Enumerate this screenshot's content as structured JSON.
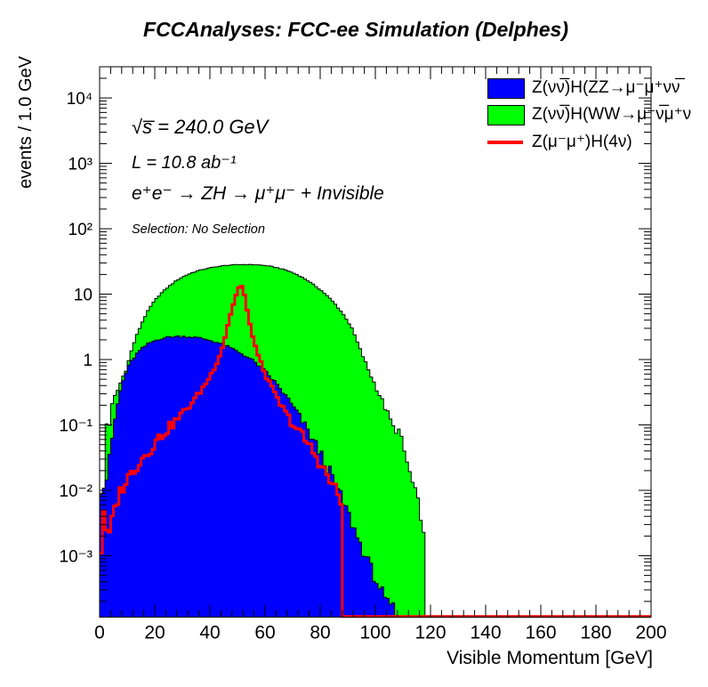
{
  "title": "FCCAnalyses: FCC-ee Simulation (Delphes)",
  "y_axis_title": "events / 1.0 GeV",
  "x_axis_title": "Visible Momentum [GeV]",
  "annotations": {
    "sqrt_s": "√s̅ = 240.0 GeV",
    "luminosity": "L = 10.8 ab⁻¹",
    "process": "e⁺e⁻ → ZH → μ⁺μ⁻ + Invisible",
    "selection": "Selection: No Selection"
  },
  "legend": {
    "entries": [
      {
        "label": "Z(νν̅)H(ZZ→μ⁻μ⁺νν̅",
        "marker": "box",
        "color": "#0000ff"
      },
      {
        "label": "Z(νν̅)H(WW→μ⁻ν̅μ⁺ν",
        "marker": "box",
        "color": "#00ff00"
      },
      {
        "label": "Z(μ⁻μ⁺)H(4ν)",
        "marker": "line",
        "color": "#ff0000"
      }
    ]
  },
  "chart_data": {
    "type": "bar",
    "subtype": "histogram-steps-log-y",
    "bin_width_gev": 1.0,
    "x_range": [
      0,
      200
    ],
    "y_range": [
      0.000115,
      30000
    ],
    "y_scale": "log",
    "grid": false,
    "legend_position": "top-right",
    "x_major_ticks": [
      0,
      20,
      40,
      60,
      80,
      100,
      120,
      140,
      160,
      180,
      200
    ],
    "x_minor_step_gev": 4,
    "y_major_ticks": [
      {
        "value": 10000,
        "label": "10⁴"
      },
      {
        "value": 1000,
        "label": "10³"
      },
      {
        "value": 100,
        "label": "10²"
      },
      {
        "value": 10,
        "label": "10"
      },
      {
        "value": 1,
        "label": "1"
      },
      {
        "value": 0.1,
        "label": "10⁻¹"
      },
      {
        "value": 0.01,
        "label": "10⁻²"
      },
      {
        "value": 0.001,
        "label": "10⁻³"
      }
    ],
    "series": [
      {
        "name": "Z(νν̅)H(WW→μ⁻ν̅μ⁺ν)",
        "style": "filled",
        "fill_color": "#00ff00",
        "line_color": "#000000",
        "line_width": 1,
        "envelope_points": [
          [
            0,
            0.12
          ],
          [
            1,
            0.0001
          ],
          [
            2,
            0.16
          ],
          [
            3,
            0.07
          ],
          [
            4,
            0.16
          ],
          [
            5,
            0.24
          ],
          [
            6,
            0.3
          ],
          [
            7,
            0.38
          ],
          [
            8,
            0.5
          ],
          [
            9,
            0.62
          ],
          [
            10,
            0.8
          ],
          [
            12,
            1.6
          ],
          [
            14,
            2.7
          ],
          [
            16,
            4.2
          ],
          [
            18,
            6.0
          ],
          [
            20,
            8.0
          ],
          [
            22,
            10
          ],
          [
            24,
            12
          ],
          [
            26,
            14
          ],
          [
            28,
            16.3
          ],
          [
            30,
            18.2
          ],
          [
            32,
            20
          ],
          [
            34,
            21.6
          ],
          [
            36,
            23
          ],
          [
            38,
            24.2
          ],
          [
            40,
            25.2
          ],
          [
            42,
            26.1
          ],
          [
            44,
            26.9
          ],
          [
            46,
            27.5
          ],
          [
            48,
            27.9
          ],
          [
            50,
            28.2
          ],
          [
            52,
            28.3
          ],
          [
            54,
            28.3
          ],
          [
            56,
            28.2
          ],
          [
            58,
            27.9
          ],
          [
            60,
            27.4
          ],
          [
            62,
            26.6
          ],
          [
            64,
            25.6
          ],
          [
            66,
            24.4
          ],
          [
            68,
            23.0
          ],
          [
            70,
            21.3
          ],
          [
            72,
            19.5
          ],
          [
            74,
            17.6
          ],
          [
            76,
            15.6
          ],
          [
            78,
            13.6
          ],
          [
            80,
            11.7
          ],
          [
            82,
            9.9
          ],
          [
            84,
            8.2
          ],
          [
            86,
            6.6
          ],
          [
            88,
            5.2
          ],
          [
            90,
            3.9
          ],
          [
            92,
            2.7
          ],
          [
            94,
            1.6
          ],
          [
            96,
            1.0
          ],
          [
            98,
            0.62
          ],
          [
            100,
            0.4
          ],
          [
            102,
            0.26
          ],
          [
            104,
            0.165
          ],
          [
            106,
            0.105
          ],
          [
            107,
            0.075
          ],
          [
            108,
            0.1
          ],
          [
            109,
            0.066
          ],
          [
            110,
            0.046
          ],
          [
            111,
            0.032
          ],
          [
            112,
            0.022
          ],
          [
            113,
            0.015
          ],
          [
            114,
            0.0105
          ],
          [
            115,
            0.0075
          ],
          [
            116,
            0.0053
          ],
          [
            117,
            0.0035
          ],
          [
            118,
            0.0011
          ],
          [
            119,
            0
          ]
        ]
      },
      {
        "name": "Z(νν̅)H(ZZ→μ⁻μ⁺νν̅)",
        "style": "filled",
        "fill_color": "#0000ff",
        "line_color": "#000000",
        "line_width": 1,
        "envelope_points": [
          [
            0,
            0.01
          ],
          [
            1,
            0.011
          ],
          [
            2,
            0.012
          ],
          [
            3,
            0.02
          ],
          [
            4,
            0.042
          ],
          [
            5,
            0.09
          ],
          [
            6,
            0.16
          ],
          [
            7,
            0.27
          ],
          [
            8,
            0.4
          ],
          [
            9,
            0.55
          ],
          [
            10,
            0.72
          ],
          [
            12,
            1.02
          ],
          [
            14,
            1.3
          ],
          [
            16,
            1.55
          ],
          [
            18,
            1.78
          ],
          [
            20,
            1.95
          ],
          [
            22,
            2.08
          ],
          [
            24,
            2.17
          ],
          [
            26,
            2.23
          ],
          [
            28,
            2.26
          ],
          [
            30,
            2.26
          ],
          [
            32,
            2.24
          ],
          [
            34,
            2.2
          ],
          [
            36,
            2.14
          ],
          [
            38,
            2.06
          ],
          [
            40,
            1.97
          ],
          [
            42,
            1.86
          ],
          [
            44,
            1.74
          ],
          [
            46,
            1.61
          ],
          [
            48,
            1.47
          ],
          [
            50,
            1.33
          ],
          [
            52,
            1.2
          ],
          [
            54,
            1.07
          ],
          [
            56,
            0.93
          ],
          [
            58,
            0.79
          ],
          [
            60,
            0.66
          ],
          [
            62,
            0.54
          ],
          [
            64,
            0.43
          ],
          [
            66,
            0.34
          ],
          [
            68,
            0.26
          ],
          [
            70,
            0.195
          ],
          [
            72,
            0.145
          ],
          [
            74,
            0.105
          ],
          [
            76,
            0.075
          ],
          [
            78,
            0.053
          ],
          [
            80,
            0.037
          ],
          [
            82,
            0.025
          ],
          [
            84,
            0.017
          ],
          [
            86,
            0.011
          ],
          [
            88,
            0.0072
          ],
          [
            90,
            0.0046
          ],
          [
            92,
            0.0028
          ],
          [
            94,
            0.0017
          ],
          [
            96,
            0.0011
          ],
          [
            98,
            0.0007
          ],
          [
            100,
            0.00045
          ],
          [
            102,
            0.0003
          ],
          [
            103,
            0.00026
          ],
          [
            104,
            0.00013
          ],
          [
            105,
            0.00026
          ],
          [
            106,
            0.00012
          ],
          [
            107,
            0.0002
          ],
          [
            108,
            0
          ]
        ]
      },
      {
        "name": "Z(μ⁻μ⁺)H(4ν)",
        "style": "line",
        "fill_color": null,
        "line_color": "#ff0000",
        "line_width": 3,
        "envelope_points": [
          [
            0,
            0.0001
          ],
          [
            1,
            0.013
          ],
          [
            2,
            0.0022
          ],
          [
            3,
            0.0019
          ],
          [
            4,
            0.0025
          ],
          [
            5,
            0.0045
          ],
          [
            6,
            0.0062
          ],
          [
            7,
            0.0084
          ],
          [
            8,
            0.0105
          ],
          [
            9,
            0.0125
          ],
          [
            10,
            0.0145
          ],
          [
            12,
            0.02
          ],
          [
            14,
            0.026
          ],
          [
            16,
            0.033
          ],
          [
            18,
            0.042
          ],
          [
            20,
            0.053
          ],
          [
            22,
            0.066
          ],
          [
            24,
            0.081
          ],
          [
            26,
            0.098
          ],
          [
            28,
            0.12
          ],
          [
            30,
            0.15
          ],
          [
            32,
            0.185
          ],
          [
            34,
            0.235
          ],
          [
            36,
            0.3
          ],
          [
            38,
            0.4
          ],
          [
            40,
            0.55
          ],
          [
            42,
            0.8
          ],
          [
            44,
            1.3
          ],
          [
            45,
            1.8
          ],
          [
            46,
            2.7
          ],
          [
            47,
            4.2
          ],
          [
            48,
            5.8
          ],
          [
            49,
            8.2
          ],
          [
            50,
            11.5
          ],
          [
            51,
            13.8
          ],
          [
            52,
            12.5
          ],
          [
            53,
            7.5
          ],
          [
            54,
            4.2
          ],
          [
            55,
            2.8
          ],
          [
            56,
            1.9
          ],
          [
            57,
            1.35
          ],
          [
            58,
            1.0
          ],
          [
            60,
            0.6
          ],
          [
            62,
            0.4
          ],
          [
            64,
            0.27
          ],
          [
            66,
            0.19
          ],
          [
            68,
            0.14
          ],
          [
            70,
            0.105
          ],
          [
            72,
            0.082
          ],
          [
            74,
            0.063
          ],
          [
            76,
            0.048
          ],
          [
            78,
            0.036
          ],
          [
            80,
            0.026
          ],
          [
            82,
            0.018
          ],
          [
            84,
            0.013
          ],
          [
            86,
            0.0095
          ],
          [
            87,
            0.0078
          ],
          [
            88,
            0.005
          ],
          [
            88.5,
            0
          ],
          [
            200,
            0
          ]
        ]
      }
    ]
  }
}
